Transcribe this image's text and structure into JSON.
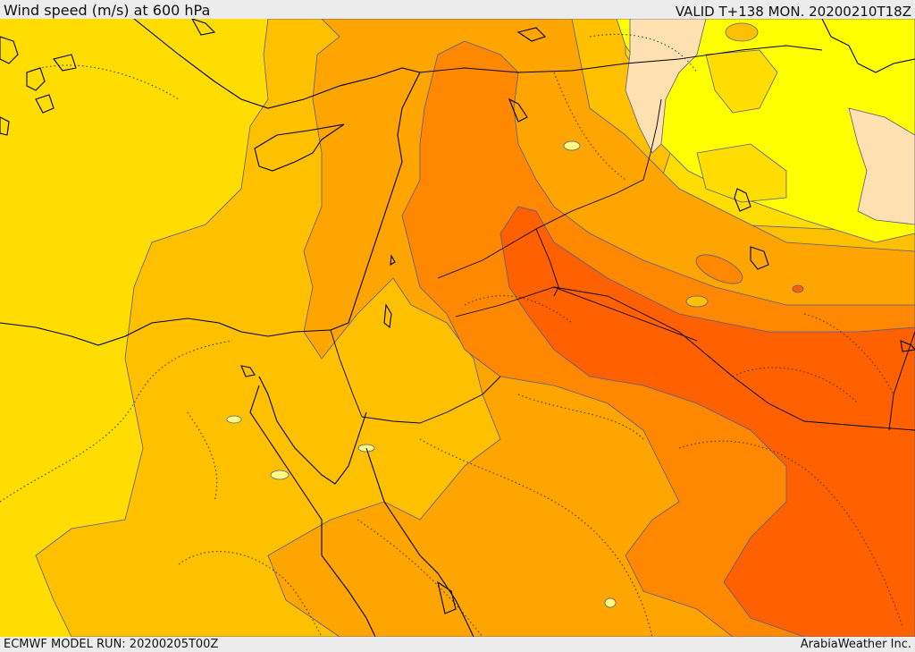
{
  "header": {
    "title": "Wind speed (m/s) at 600 hPa",
    "valid_time": "VALID T+138 MON. 20200210T18Z"
  },
  "footer": {
    "model_run": "ECMWF MODEL RUN: 20200205T00Z",
    "credit": "ArabiaWeather Inc."
  },
  "map": {
    "variable": "wind speed",
    "level": "600 hPa",
    "palette": {
      "very_light": "#ffe0b0",
      "lightest": "#ffff00",
      "light": "#ffdd00",
      "mid_light": "#ffc000",
      "mid": "#ffa500",
      "strong": "#ff8800",
      "strongest": "#ff6000"
    },
    "contour_color": "#5a5a8c",
    "coastline_color": "#000000",
    "border_style": "solid black",
    "dotted_line_style": "dotted"
  }
}
